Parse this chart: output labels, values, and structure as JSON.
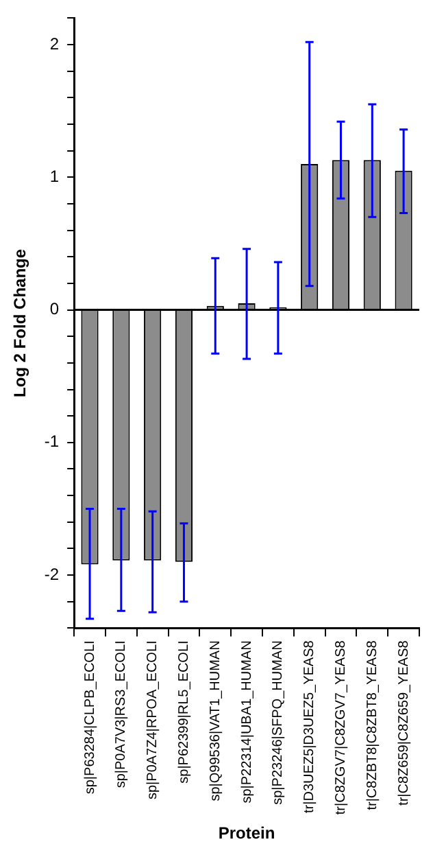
{
  "chart_data": {
    "type": "bar",
    "xlabel": "Protein",
    "ylabel": "Log 2 Fold Change",
    "categories": [
      "sp|P63284|CLPB_ECOLI",
      "sp|P0A7V3|RS3_ECOLI",
      "sp|P0A7Z4|RPOA_ECOLI",
      "sp|P62399|RL5_ECOLI",
      "sp|Q99536|VAT1_HUMAN",
      "sp|P22314|UBA1_HUMAN",
      "sp|P23246|SFPQ_HUMAN",
      "tr|D3UEZ5|D3UEZ5_YEAS8",
      "tr|C8ZGV7|C8ZGV7_YEAS8",
      "tr|C8ZBT8|C8ZBT8_YEAS8",
      "tr|C8Z659|C8Z659_YEAS8"
    ],
    "values": [
      -1.92,
      -1.89,
      -1.89,
      -1.9,
      0.03,
      0.05,
      0.02,
      1.1,
      1.13,
      1.13,
      1.05
    ],
    "errors": [
      [
        -2.33,
        -1.5
      ],
      [
        -2.27,
        -1.5
      ],
      [
        -2.28,
        -1.52
      ],
      [
        -2.2,
        -1.61
      ],
      [
        -0.33,
        0.39
      ],
      [
        -0.37,
        0.46
      ],
      [
        -0.33,
        0.36
      ],
      [
        0.18,
        2.02
      ],
      [
        0.84,
        1.42
      ],
      [
        0.7,
        1.55
      ],
      [
        0.73,
        1.36
      ]
    ],
    "color": "#8c8c8c",
    "ylim": [
      -2.4,
      2.2
    ],
    "yticks": [
      {
        "value": -2.4,
        "label": null
      },
      {
        "value": -2.2,
        "label": null
      },
      -2,
      {
        "value": -1.8,
        "label": null
      },
      {
        "value": -1.6,
        "label": null
      },
      {
        "value": -1.4,
        "label": null
      },
      {
        "value": -1.2,
        "label": null
      },
      -1,
      {
        "value": -0.8,
        "label": null
      },
      {
        "value": -0.6,
        "label": null
      },
      {
        "value": -0.4,
        "label": null
      },
      {
        "value": -0.2,
        "label": null
      },
      0,
      {
        "value": 0.2,
        "label": null
      },
      {
        "value": 0.4,
        "label": null
      },
      {
        "value": 0.6,
        "label": null
      },
      {
        "value": 0.8,
        "label": null
      },
      1,
      {
        "value": 1.2,
        "label": null
      },
      {
        "value": 1.4,
        "label": null
      },
      {
        "value": 1.6,
        "label": null
      },
      {
        "value": 1.8,
        "label": null
      },
      2,
      {
        "value": 2.2,
        "label": null
      }
    ],
    "ref_lines": [
      {
        "axis": "y",
        "value": 0,
        "color": "#000000"
      }
    ],
    "grid": false,
    "legend": false
  }
}
